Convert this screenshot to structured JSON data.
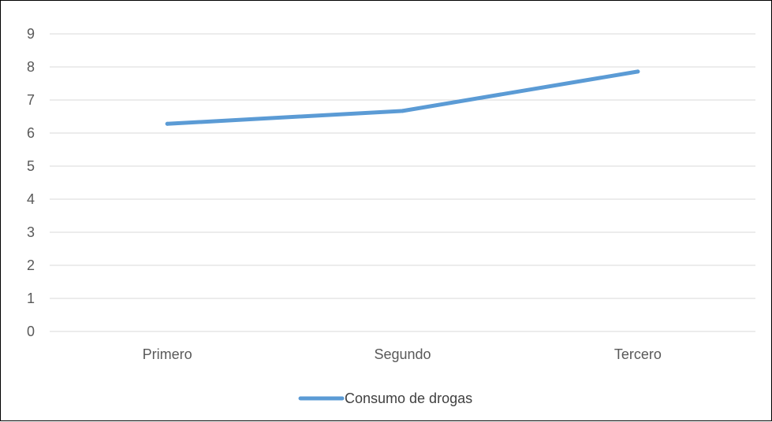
{
  "chart_data": {
    "type": "line",
    "categories": [
      "Primero",
      "Segundo",
      "Tercero"
    ],
    "series": [
      {
        "name": "Consumo de drogas",
        "values": [
          6.28,
          6.67,
          7.86
        ],
        "color": "#5B9BD5"
      }
    ],
    "ylim": [
      0,
      9
    ],
    "yticks": [
      0,
      1,
      2,
      3,
      4,
      5,
      6,
      7,
      8,
      9
    ],
    "grid": true,
    "legend_position": "bottom",
    "gridline_color": "#d9d9d9",
    "title": "",
    "xlabel": "",
    "ylabel": ""
  }
}
